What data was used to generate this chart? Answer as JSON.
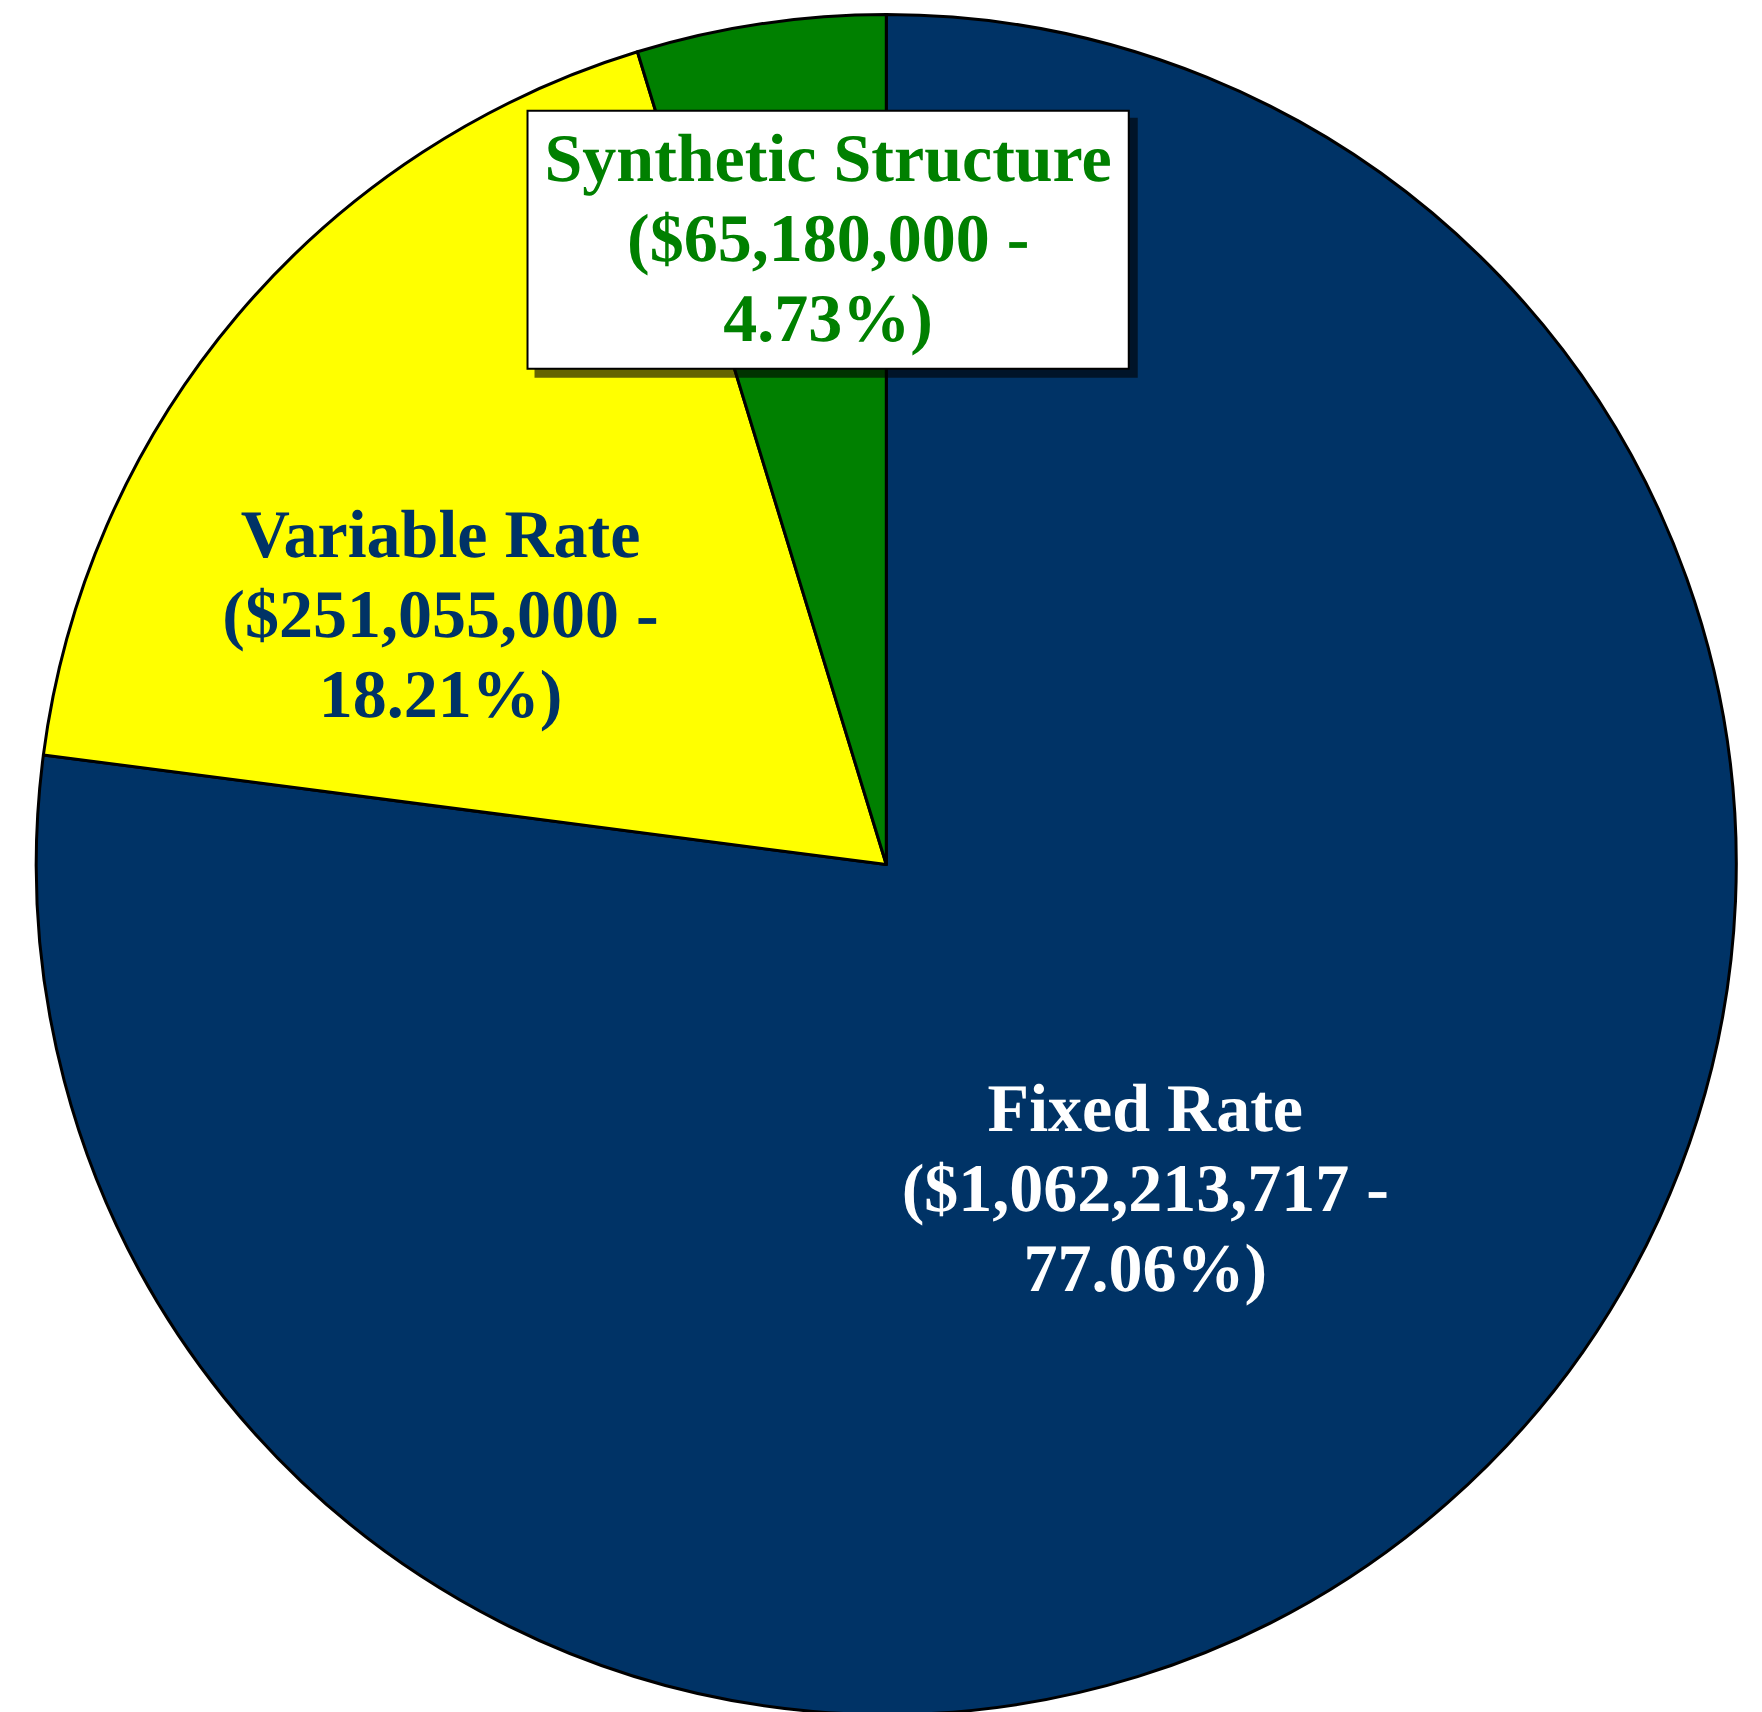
{
  "chart_data": {
    "type": "pie",
    "categories": [
      "Fixed Rate",
      "Variable Rate",
      "Synthetic Structure"
    ],
    "values": [
      1062213717,
      251055000,
      65180000
    ],
    "colors": [
      "#003366",
      "#ffff00",
      "#008000"
    ],
    "value_labels": [
      "($1,062,213,717 - 77.06%)",
      "($251,055,000 - 18.21%)",
      "($65,180,000 - 4.73%)"
    ],
    "legend": false
  }
}
